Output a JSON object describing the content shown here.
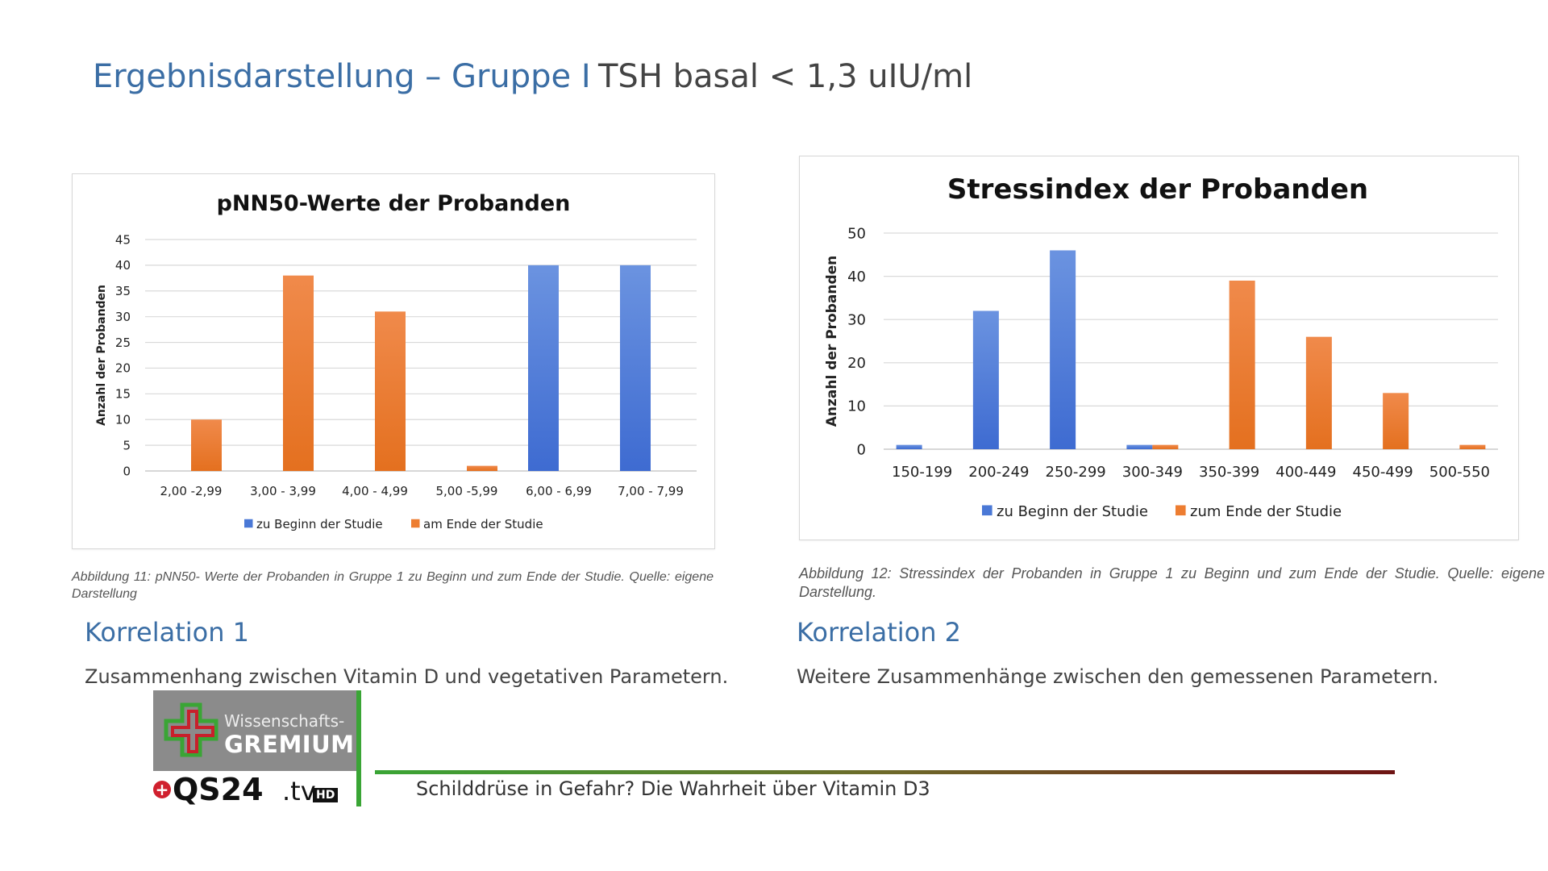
{
  "slide": {
    "title": "Ergebnisdarstellung – Gruppe I",
    "subtitle": "TSH basal < 1,3 uIU/ml"
  },
  "captions": {
    "fig11": "Abbildung 11: pNN50- Werte der Probanden in Gruppe 1 zu Beginn und zum Ende der Studie. Quelle: eigene Darstellung",
    "fig12": "Abbildung 12: Stressindex der Probanden in Gruppe 1 zu Beginn und zum Ende der Studie. Quelle: eigene Darstellung."
  },
  "sections": {
    "k1_title": "Korrelation 1",
    "k1_text": "Zusammenhang zwischen Vitamin D und vegetativen Parametern.",
    "k2_title": "Korrelation 2",
    "k2_text": "Weitere Zusammenhänge zwischen den gemessenen Parametern."
  },
  "logo": {
    "line1": "Wissenschafts-",
    "line2": "GREMIUM",
    "brand": "QS24",
    "tv": ".tv",
    "hd": "HD",
    "plus": "+"
  },
  "ticker": {
    "text": "Schilddrüse in Gefahr? Die Wahrheit über Vitamin D3"
  },
  "colors": {
    "blue": "#4a78d6",
    "orange": "#ed7d31"
  },
  "chart_data": [
    {
      "type": "bar",
      "title": "pNN50-Werte der Probanden",
      "ylabel": "Anzahl der Probanden",
      "xlabel": "",
      "categories": [
        "2,00 -2,99",
        "3,00 - 3,99",
        "4,00 - 4,99",
        "5,00 -5,99",
        "6,00 - 6,99",
        "7,00 - 7,99"
      ],
      "series": [
        {
          "name": "zu Beginn der Studie",
          "color": "#4a78d6",
          "values": [
            0,
            0,
            0,
            0,
            40,
            40
          ]
        },
        {
          "name": "am Ende der Studie",
          "color": "#ed7d31",
          "values": [
            10,
            38,
            31,
            1,
            0,
            0
          ]
        }
      ],
      "ylim": [
        0,
        45
      ],
      "yticks": [
        0,
        5,
        10,
        15,
        20,
        25,
        30,
        35,
        40,
        45
      ],
      "grid": true,
      "legend": "bottom"
    },
    {
      "type": "bar",
      "title": "Stressindex der Probanden",
      "ylabel": "Anzahl der Probanden",
      "xlabel": "",
      "categories": [
        "150-199",
        "200-249",
        "250-299",
        "300-349",
        "350-399",
        "400-449",
        "450-499",
        "500-550"
      ],
      "series": [
        {
          "name": "zu Beginn der Studie",
          "color": "#4a78d6",
          "values": [
            1,
            32,
            46,
            1,
            0,
            0,
            0,
            0
          ]
        },
        {
          "name": "zum Ende der Studie",
          "color": "#ed7d31",
          "values": [
            0,
            0,
            0,
            1,
            39,
            26,
            13,
            1
          ]
        }
      ],
      "ylim": [
        0,
        50
      ],
      "yticks": [
        0,
        10,
        20,
        30,
        40,
        50
      ],
      "grid": true,
      "legend": "bottom"
    }
  ]
}
